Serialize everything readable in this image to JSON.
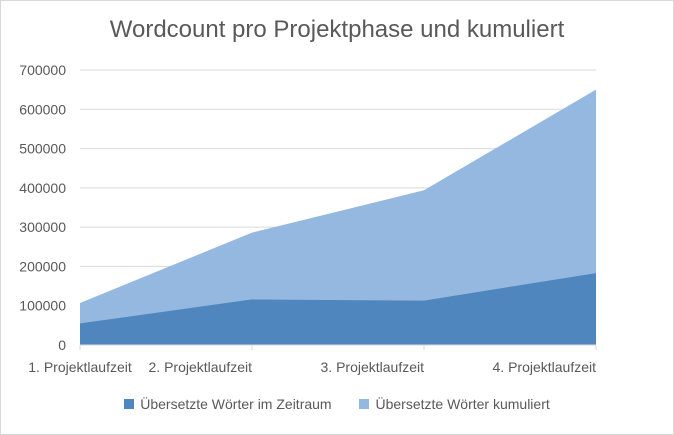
{
  "chart_data": {
    "type": "area",
    "title": "Wordcount pro Projektphase und kumuliert",
    "xlabel": "",
    "ylabel": "",
    "categories": [
      "1. Projektlaufzeit",
      "2. Projektlaufzeit",
      "3. Projektlaufzeit",
      "4. Projektlaufzeit"
    ],
    "ylim": [
      0,
      700000
    ],
    "yticks": [
      0,
      100000,
      200000,
      300000,
      400000,
      500000,
      600000,
      700000
    ],
    "ytick_labels": [
      "0",
      "100000",
      "200000",
      "300000",
      "400000",
      "500000",
      "600000",
      "700000"
    ],
    "grid": true,
    "legend_position": "bottom",
    "series": [
      {
        "name": "Übersetzte Wörter kumuliert",
        "values": [
          107000,
          286000,
          394000,
          650000
        ],
        "color": "#95b8e0"
      },
      {
        "name": "Übersetzte Wörter im Zeitraum",
        "values": [
          55000,
          116000,
          113000,
          183000
        ],
        "color": "#4f86bd"
      }
    ],
    "legend_order": [
      1,
      0
    ]
  }
}
